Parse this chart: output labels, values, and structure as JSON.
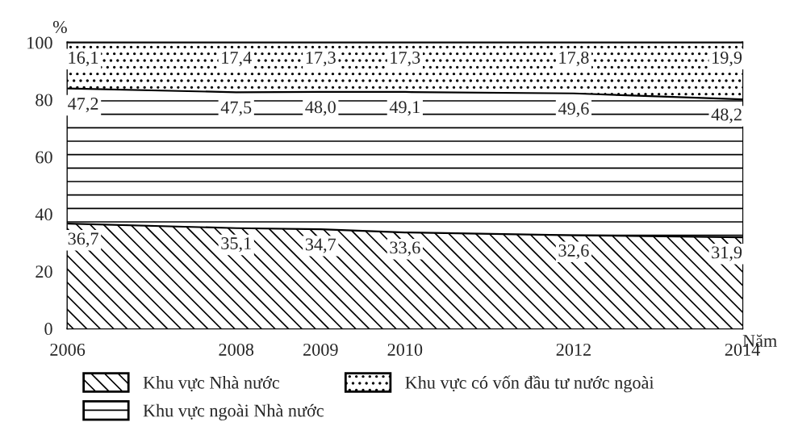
{
  "chart_data": {
    "type": "area",
    "stacked": true,
    "ylabel": "%",
    "xlabel": "Năm",
    "x": [
      2006,
      2008,
      2009,
      2010,
      2012,
      2014
    ],
    "series": [
      {
        "name": "Khu vực Nhà nước",
        "color": "#ffffff",
        "values": [
          36.7,
          35.1,
          34.7,
          33.6,
          32.6,
          31.9
        ],
        "value_labels": [
          "36,7",
          "35,1",
          "34,7",
          "33,6",
          "32,6",
          "31,9"
        ]
      },
      {
        "name": "Khu vực ngoài Nhà nước",
        "color": "#ffffff",
        "values": [
          47.2,
          47.5,
          48.0,
          49.1,
          49.6,
          48.2
        ],
        "value_labels": [
          "47,2",
          "47,5",
          "48,0",
          "49,1",
          "49,6",
          "48,2"
        ]
      },
      {
        "name": "Khu vực có vốn đầu tư nước ngoài",
        "color": "#ffffff",
        "values": [
          16.1,
          17.4,
          17.3,
          17.3,
          17.8,
          19.9
        ],
        "value_labels": [
          "16,1",
          "17,4",
          "17,3",
          "17,3",
          "17,8",
          "19,9"
        ]
      }
    ],
    "xlim": [
      2006,
      2014
    ],
    "xticks": [
      2006,
      2008,
      2009,
      2010,
      2012,
      2014
    ],
    "ylim": [
      0,
      100
    ],
    "yticks": [
      0,
      20,
      40,
      60,
      80,
      100
    ],
    "legend": "bottom"
  }
}
